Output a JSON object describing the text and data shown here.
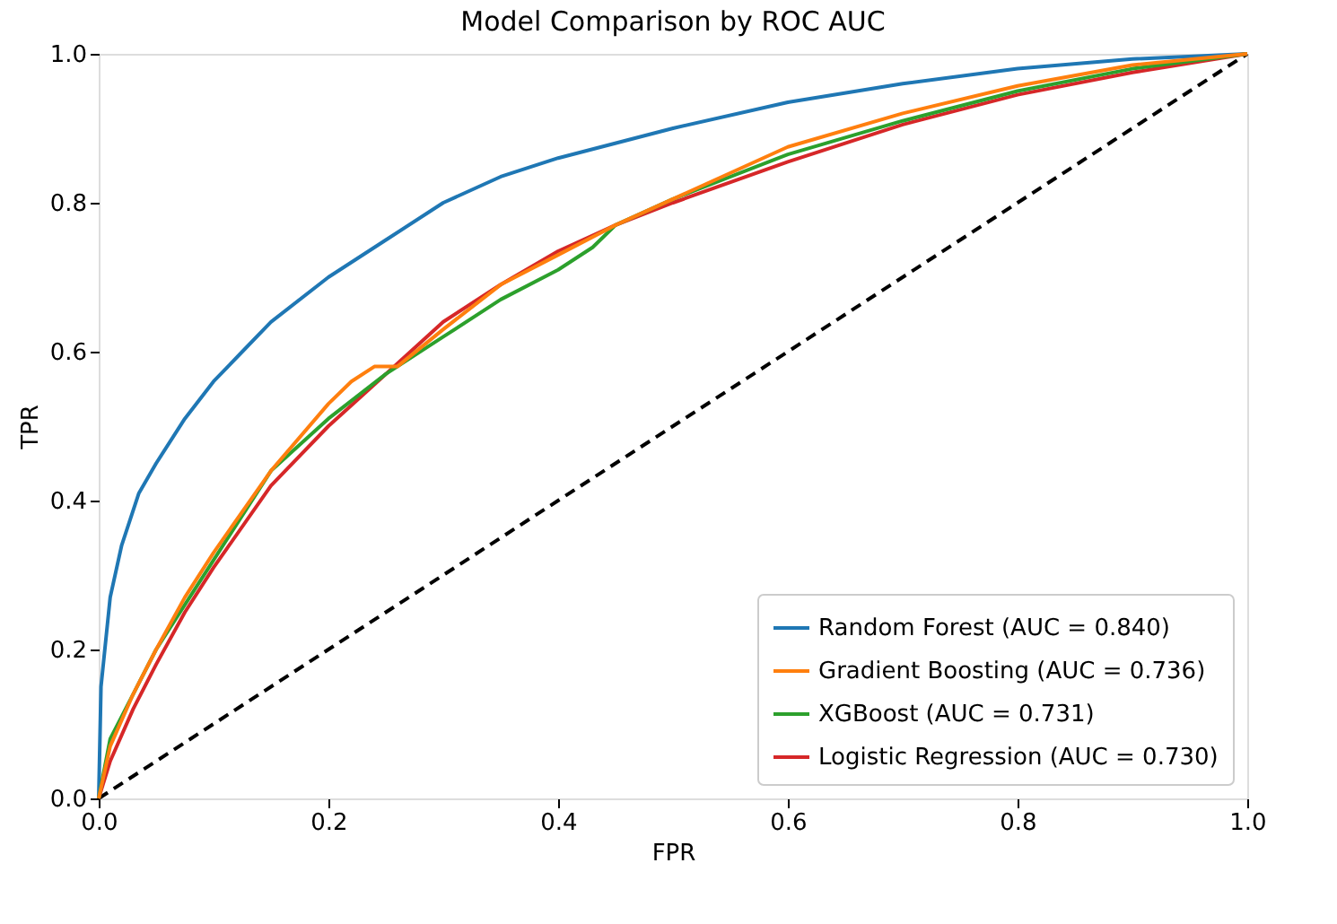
{
  "chart_data": {
    "type": "line",
    "title": "Model Comparison by ROC AUC",
    "xlabel": "FPR",
    "ylabel": "TPR",
    "xlim": [
      0,
      1
    ],
    "ylim": [
      0,
      1
    ],
    "xticks": [
      {
        "value": 0,
        "label": "0.0"
      },
      {
        "value": 0.2,
        "label": "0.2"
      },
      {
        "value": 0.4,
        "label": "0.4"
      },
      {
        "value": 0.6,
        "label": "0.6"
      },
      {
        "value": 0.8,
        "label": "0.8"
      },
      {
        "value": 1,
        "label": "1.0"
      }
    ],
    "yticks": [
      {
        "value": 0,
        "label": "0.0"
      },
      {
        "value": 0.2,
        "label": "0.2"
      },
      {
        "value": 0.4,
        "label": "0.4"
      },
      {
        "value": 0.6,
        "label": "0.6"
      },
      {
        "value": 0.8,
        "label": "0.8"
      },
      {
        "value": 1,
        "label": "1.0"
      }
    ],
    "grid": false,
    "legend": "bottom right",
    "marker": "none",
    "series": [
      {
        "name": "Random Forest (AUC = 0.840)",
        "color": "#1f77b4",
        "line_style": "solid",
        "x": [
          0,
          0.002,
          0.01,
          0.02,
          0.035,
          0.05,
          0.075,
          0.1,
          0.125,
          0.15,
          0.2,
          0.25,
          0.3,
          0.35,
          0.4,
          0.5,
          0.6,
          0.7,
          0.8,
          0.9,
          1
        ],
        "values": [
          0,
          0.15,
          0.27,
          0.34,
          0.41,
          0.45,
          0.51,
          0.56,
          0.6,
          0.64,
          0.7,
          0.75,
          0.8,
          0.835,
          0.86,
          0.9,
          0.935,
          0.96,
          0.98,
          0.993,
          1
        ]
      },
      {
        "name": "Gradient Boosting (AUC = 0.736)",
        "color": "#ff7f0e",
        "line_style": "solid",
        "x": [
          0,
          0.01,
          0.03,
          0.05,
          0.075,
          0.1,
          0.15,
          0.2,
          0.22,
          0.24,
          0.26,
          0.3,
          0.35,
          0.4,
          0.45,
          0.5,
          0.6,
          0.7,
          0.8,
          0.9,
          1
        ],
        "values": [
          0,
          0.07,
          0.14,
          0.2,
          0.27,
          0.33,
          0.44,
          0.53,
          0.56,
          0.58,
          0.58,
          0.63,
          0.69,
          0.73,
          0.77,
          0.805,
          0.875,
          0.92,
          0.957,
          0.985,
          1
        ]
      },
      {
        "name": "XGBoost (AUC = 0.731)",
        "color": "#2ca02c",
        "line_style": "solid",
        "x": [
          0,
          0.01,
          0.03,
          0.05,
          0.075,
          0.1,
          0.15,
          0.2,
          0.25,
          0.3,
          0.35,
          0.4,
          0.43,
          0.45,
          0.5,
          0.6,
          0.7,
          0.8,
          0.9,
          1
        ],
        "values": [
          0,
          0.08,
          0.14,
          0.2,
          0.26,
          0.32,
          0.44,
          0.51,
          0.57,
          0.62,
          0.67,
          0.71,
          0.74,
          0.77,
          0.805,
          0.865,
          0.91,
          0.95,
          0.98,
          1
        ]
      },
      {
        "name": "Logistic Regression (AUC = 0.730)",
        "color": "#d62728",
        "line_style": "solid",
        "x": [
          0,
          0.01,
          0.03,
          0.05,
          0.075,
          0.1,
          0.15,
          0.2,
          0.25,
          0.3,
          0.35,
          0.4,
          0.45,
          0.5,
          0.6,
          0.7,
          0.8,
          0.9,
          1
        ],
        "values": [
          0,
          0.05,
          0.12,
          0.18,
          0.25,
          0.31,
          0.42,
          0.5,
          0.57,
          0.64,
          0.69,
          0.735,
          0.77,
          0.8,
          0.855,
          0.905,
          0.945,
          0.975,
          1
        ]
      },
      {
        "color": "#000000",
        "line_style": "dashed",
        "x": [
          0,
          1
        ],
        "values": [
          0,
          1
        ]
      }
    ]
  }
}
